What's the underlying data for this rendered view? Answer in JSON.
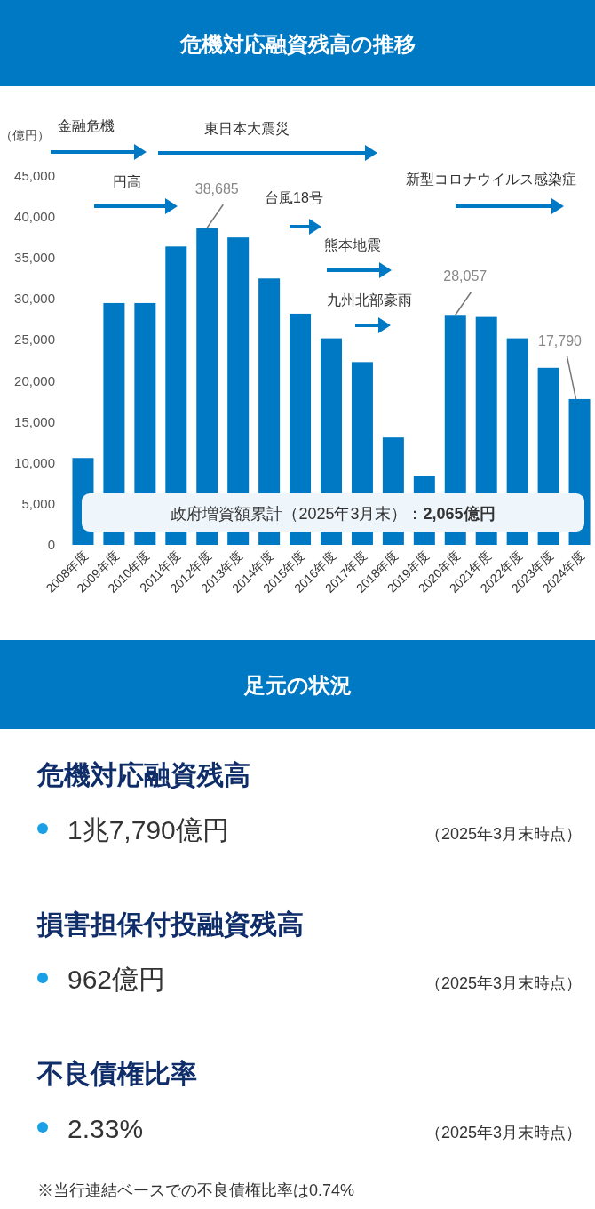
{
  "chart_data": [
    {
      "type": "bar",
      "title": "危機対応融資残高の推移",
      "ylabel": "（億円）",
      "categories": [
        "2008年度",
        "2009年度",
        "2010年度",
        "2011年度",
        "2012年度",
        "2013年度",
        "2014年度",
        "2015年度",
        "2016年度",
        "2017年度",
        "2018年度",
        "2019年度",
        "2020年度",
        "2021年度",
        "2022年度",
        "2023年度",
        "2024年度"
      ],
      "values": [
        10600,
        29500,
        29500,
        36400,
        38685,
        37500,
        32500,
        28200,
        25200,
        22300,
        13100,
        8400,
        28057,
        27800,
        25200,
        21600,
        17790
      ],
      "value_labels": [
        null,
        null,
        null,
        null,
        "38,685",
        null,
        null,
        null,
        null,
        null,
        null,
        null,
        "28,057",
        null,
        null,
        null,
        "17,790"
      ],
      "color": "#0079c4",
      "ylim": [
        0,
        45000
      ],
      "yticks": [
        {
          "value": 0,
          "label": "0"
        },
        {
          "value": 5000,
          "label": "5,000"
        },
        {
          "value": 10000,
          "label": "10,000"
        },
        {
          "value": 15000,
          "label": "15,000"
        },
        {
          "value": 20000,
          "label": "20,000"
        },
        {
          "value": 25000,
          "label": "25,000"
        },
        {
          "value": 30000,
          "label": "30,000"
        },
        {
          "value": 35000,
          "label": "35,000"
        },
        {
          "value": 40000,
          "label": "40,000"
        },
        {
          "value": 45000,
          "label": "45,000"
        }
      ],
      "annotations": [
        "金融危機",
        "東日本大震災",
        "円高",
        "台風18号",
        "熊本地震",
        "九州北部豪雨",
        "新型コロナウイルス感染症",
        "政府増資額累計（2025年3月末）：**2,065億円**"
      ],
      "grid": false
    },
    {
      "type": "other",
      "title": "足元の状況",
      "annotations": [
        "危機対応融資残高",
        "1兆7,790億円",
        "（2025年3月末時点）",
        "損害担保付投融資残高",
        "962億円",
        "（2025年3月末時点）",
        "不良債権比率",
        "2.33%",
        "（2025年3月末時点）",
        "※当行連結ベースでの不良債権比率は0.74%"
      ]
    }
  ]
}
